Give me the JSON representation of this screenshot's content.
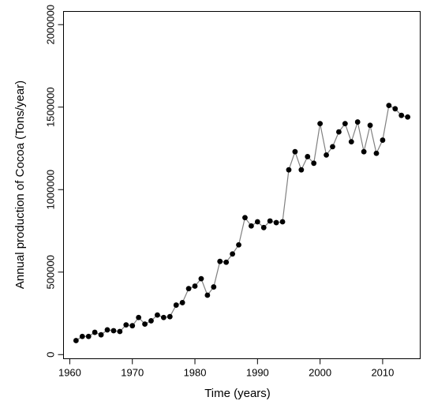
{
  "chart_data": {
    "type": "line",
    "title": "",
    "xlabel": "Time (years)",
    "ylabel": "Annual production of Cocoa (Tons/year)",
    "xlim": [
      1959,
      2016
    ],
    "ylim": [
      -25000,
      2080000
    ],
    "x_ticks": [
      1960,
      1970,
      1980,
      1990,
      2000,
      2010
    ],
    "x_tick_labels": [
      "1960",
      "1970",
      "1980",
      "1990",
      "2000",
      "2010"
    ],
    "y_ticks": [
      0,
      500000,
      1000000,
      1500000,
      2000000
    ],
    "y_tick_labels": [
      "0",
      "500000",
      "1000000",
      "1500000",
      "2000000"
    ],
    "grid": false,
    "line_color": "#808080",
    "marker_color": "#000000",
    "series": [
      {
        "x": [
          1961,
          1962,
          1963,
          1964,
          1965,
          1966,
          1967,
          1968,
          1969,
          1970,
          1971,
          1972,
          1973,
          1974,
          1975,
          1976,
          1977,
          1978,
          1979,
          1980,
          1981,
          1982,
          1983,
          1984,
          1985,
          1986,
          1987,
          1988,
          1989,
          1990,
          1991,
          1992,
          1993,
          1994,
          1995,
          1996,
          1997,
          1998,
          1999,
          2000,
          2001,
          2002,
          2003,
          2004,
          2005,
          2006,
          2007,
          2008,
          2009,
          2010,
          2011,
          2012,
          2013,
          2014
        ],
        "values": [
          85000,
          110000,
          110000,
          135000,
          120000,
          150000,
          145000,
          140000,
          180000,
          175000,
          225000,
          185000,
          205000,
          240000,
          225000,
          230000,
          300000,
          315000,
          400000,
          415000,
          460000,
          360000,
          410000,
          565000,
          560000,
          610000,
          665000,
          830000,
          780000,
          805000,
          770000,
          810000,
          800000,
          805000,
          1120000,
          1230000,
          1120000,
          1200000,
          1160000,
          1400000,
          1210000,
          1260000,
          1350000,
          1400000,
          1290000,
          1410000,
          1230000,
          1390000,
          1220000,
          1300000,
          1510000,
          1490000,
          1450000,
          1440000
        ]
      }
    ]
  }
}
